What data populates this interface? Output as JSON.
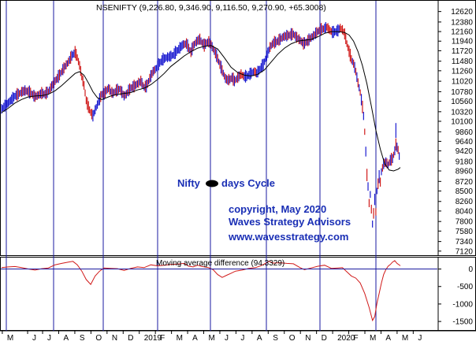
{
  "chart_data": [
    {
      "type": "line",
      "title": "NSENIFTY (9,226.80, 9,346.90, 9,116.50, 9,270.90, +65.3008)",
      "price_series": "NSENIFTY",
      "ohlc_last": {
        "open": 9226.8,
        "high": 9346.9,
        "low": 9116.5,
        "close": 9270.9,
        "change": 65.3008
      },
      "y_ticks": [
        12620,
        12380,
        12160,
        11940,
        11720,
        11480,
        11260,
        11020,
        10780,
        10560,
        10320,
        10100,
        9860,
        9640,
        9420,
        9180,
        8960,
        8720,
        8500,
        8260,
        8040,
        7800,
        7580,
        7340,
        7120
      ],
      "ylim": [
        7080,
        12740
      ],
      "x_month_labels": [
        "M",
        "J",
        "J",
        "A",
        "S",
        "O",
        "N",
        "D",
        "2019",
        "F",
        "M",
        "A",
        "M",
        "J",
        "J",
        "A",
        "S",
        "O",
        "N",
        "D",
        "2020",
        "F",
        "M",
        "A",
        "M",
        "J"
      ],
      "x_month_positions": [
        2,
        24,
        37,
        51,
        65,
        79,
        93,
        107,
        121,
        135,
        149,
        163,
        177,
        191,
        205,
        219,
        233,
        247,
        261,
        275,
        289,
        303,
        317,
        331,
        345,
        359
      ],
      "cycle_line_x": [
        8,
        68,
        131,
        200,
        267,
        338,
        406,
        477
      ],
      "price_close": [
        [
          0,
          10380
        ],
        [
          3,
          10450
        ],
        [
          6,
          10520
        ],
        [
          9,
          10600
        ],
        [
          12,
          10680
        ],
        [
          15,
          10720
        ],
        [
          18,
          10770
        ],
        [
          21,
          10800
        ],
        [
          24,
          10780
        ],
        [
          27,
          10730
        ],
        [
          30,
          10660
        ],
        [
          33,
          10700
        ],
        [
          36,
          10740
        ],
        [
          39,
          10720
        ],
        [
          42,
          10780
        ],
        [
          45,
          10900
        ],
        [
          48,
          11020
        ],
        [
          51,
          11120
        ],
        [
          54,
          11240
        ],
        [
          57,
          11360
        ],
        [
          60,
          11460
        ],
        [
          63,
          11600
        ],
        [
          66,
          11680
        ],
        [
          68,
          11560
        ],
        [
          70,
          11380
        ],
        [
          72,
          11120
        ],
        [
          74,
          10920
        ],
        [
          76,
          10580
        ],
        [
          78,
          10420
        ],
        [
          80,
          10300
        ],
        [
          82,
          10220
        ],
        [
          84,
          10360
        ],
        [
          86,
          10480
        ],
        [
          88,
          10600
        ],
        [
          90,
          10720
        ],
        [
          92,
          10720
        ],
        [
          94,
          10800
        ],
        [
          96,
          10860
        ],
        [
          98,
          10780
        ],
        [
          100,
          10740
        ],
        [
          103,
          10800
        ],
        [
          106,
          10840
        ],
        [
          108,
          10760
        ],
        [
          110,
          10680
        ],
        [
          112,
          10720
        ],
        [
          114,
          10800
        ],
        [
          116,
          10860
        ],
        [
          119,
          10900
        ],
        [
          122,
          10960
        ],
        [
          125,
          11020
        ],
        [
          128,
          10880
        ],
        [
          130,
          10900
        ],
        [
          133,
          11080
        ],
        [
          136,
          11240
        ],
        [
          139,
          11320
        ],
        [
          142,
          11440
        ],
        [
          145,
          11520
        ],
        [
          148,
          11560
        ],
        [
          151,
          11580
        ],
        [
          154,
          11620
        ],
        [
          157,
          11700
        ],
        [
          160,
          11780
        ],
        [
          163,
          11860
        ],
        [
          166,
          11880
        ],
        [
          168,
          11780
        ],
        [
          170,
          11680
        ],
        [
          172,
          11820
        ],
        [
          174,
          11900
        ],
        [
          176,
          11950
        ],
        [
          178,
          11980
        ],
        [
          180,
          11900
        ],
        [
          182,
          11840
        ],
        [
          184,
          11900
        ],
        [
          186,
          11920
        ],
        [
          188,
          11860
        ],
        [
          190,
          11760
        ],
        [
          193,
          11600
        ],
        [
          196,
          11400
        ],
        [
          199,
          11200
        ],
        [
          201,
          11080
        ],
        [
          203,
          11040
        ],
        [
          205,
          11060
        ],
        [
          207,
          11100
        ],
        [
          209,
          11020
        ],
        [
          212,
          11100
        ],
        [
          215,
          11180
        ],
        [
          218,
          11120
        ],
        [
          221,
          11140
        ],
        [
          224,
          11200
        ],
        [
          227,
          11240
        ],
        [
          229,
          11200
        ],
        [
          232,
          11300
        ],
        [
          235,
          11400
        ],
        [
          238,
          11600
        ],
        [
          241,
          11800
        ],
        [
          244,
          11900
        ],
        [
          247,
          11920
        ],
        [
          250,
          11980
        ],
        [
          253,
          12040
        ],
        [
          256,
          12060
        ],
        [
          259,
          12080
        ],
        [
          262,
          12100
        ],
        [
          265,
          12020
        ],
        [
          268,
          11960
        ],
        [
          271,
          11880
        ],
        [
          274,
          11920
        ],
        [
          277,
          12000
        ],
        [
          280,
          12060
        ],
        [
          283,
          12140
        ],
        [
          286,
          12200
        ],
        [
          289,
          12220
        ],
        [
          292,
          12260
        ],
        [
          295,
          12180
        ],
        [
          297,
          12140
        ],
        [
          299,
          12150
        ],
        [
          302,
          12180
        ],
        [
          304,
          12240
        ],
        [
          306,
          12200
        ],
        [
          308,
          12100
        ],
        [
          310,
          11880
        ],
        [
          312,
          11700
        ],
        [
          314,
          11520
        ],
        [
          316,
          11420
        ],
        [
          318,
          11240
        ],
        [
          320,
          10980
        ],
        [
          322,
          10760
        ],
        [
          324,
          10420
        ],
        [
          325,
          10220
        ],
        [
          326,
          9860
        ],
        [
          327,
          9400
        ],
        [
          328,
          8860
        ],
        [
          329,
          8600
        ],
        [
          330,
          8220
        ],
        [
          331,
          8420
        ],
        [
          332,
          8080
        ],
        [
          333,
          7740
        ],
        [
          334,
          7980
        ],
        [
          335,
          8300
        ],
        [
          336,
          8020
        ],
        [
          337,
          8500
        ],
        [
          338,
          8660
        ],
        [
          339,
          8820
        ],
        [
          340,
          8700
        ],
        [
          341,
          8940
        ],
        [
          343,
          9120
        ],
        [
          345,
          9160
        ],
        [
          347,
          9100
        ],
        [
          349,
          9200
        ],
        [
          351,
          9240
        ],
        [
          353,
          9420
        ],
        [
          354,
          9560
        ],
        [
          356,
          9440
        ],
        [
          357,
          9300
        ],
        [
          358,
          9270
        ]
      ],
      "ma_line": [
        [
          0,
          10300
        ],
        [
          6,
          10400
        ],
        [
          12,
          10520
        ],
        [
          18,
          10600
        ],
        [
          24,
          10660
        ],
        [
          30,
          10680
        ],
        [
          36,
          10690
        ],
        [
          42,
          10720
        ],
        [
          48,
          10800
        ],
        [
          54,
          10920
        ],
        [
          60,
          11060
        ],
        [
          66,
          11200
        ],
        [
          70,
          11240
        ],
        [
          74,
          11160
        ],
        [
          78,
          10980
        ],
        [
          82,
          10780
        ],
        [
          86,
          10640
        ],
        [
          90,
          10600
        ],
        [
          94,
          10640
        ],
        [
          98,
          10680
        ],
        [
          104,
          10720
        ],
        [
          110,
          10740
        ],
        [
          116,
          10760
        ],
        [
          122,
          10820
        ],
        [
          128,
          10860
        ],
        [
          134,
          10940
        ],
        [
          140,
          11060
        ],
        [
          146,
          11200
        ],
        [
          152,
          11360
        ],
        [
          158,
          11480
        ],
        [
          164,
          11600
        ],
        [
          170,
          11700
        ],
        [
          176,
          11780
        ],
        [
          182,
          11820
        ],
        [
          188,
          11840
        ],
        [
          194,
          11760
        ],
        [
          200,
          11560
        ],
        [
          206,
          11340
        ],
        [
          212,
          11220
        ],
        [
          218,
          11160
        ],
        [
          224,
          11140
        ],
        [
          230,
          11180
        ],
        [
          236,
          11280
        ],
        [
          242,
          11460
        ],
        [
          248,
          11640
        ],
        [
          254,
          11780
        ],
        [
          260,
          11880
        ],
        [
          266,
          11940
        ],
        [
          272,
          11960
        ],
        [
          278,
          11980
        ],
        [
          284,
          12040
        ],
        [
          290,
          12120
        ],
        [
          296,
          12160
        ],
        [
          302,
          12160
        ],
        [
          308,
          12140
        ],
        [
          312,
          12080
        ],
        [
          316,
          11940
        ],
        [
          320,
          11700
        ],
        [
          324,
          11380
        ],
        [
          328,
          10960
        ],
        [
          332,
          10440
        ],
        [
          336,
          9900
        ],
        [
          340,
          9460
        ],
        [
          344,
          9120
        ],
        [
          348,
          8980
        ],
        [
          352,
          8960
        ],
        [
          356,
          9000
        ],
        [
          358,
          9040
        ]
      ],
      "annotations": {
        "cycle_label_left": "Nifty",
        "cycle_label_right": "days Cycle",
        "copyright": "copyright, May 2020",
        "firm": "Waves Strategy Advisors",
        "website": "www.wavesstrategy.com"
      }
    },
    {
      "type": "line",
      "title": "Moving average difference (94.3329)",
      "indicator_value": 94.3329,
      "y_ticks": [
        0,
        -500,
        -1000,
        -1500
      ],
      "ylim": [
        -1700,
        260
      ],
      "values": [
        [
          0,
          40
        ],
        [
          6,
          60
        ],
        [
          12,
          70
        ],
        [
          18,
          40
        ],
        [
          24,
          0
        ],
        [
          30,
          -30
        ],
        [
          36,
          10
        ],
        [
          42,
          30
        ],
        [
          48,
          120
        ],
        [
          54,
          160
        ],
        [
          60,
          200
        ],
        [
          64,
          220
        ],
        [
          68,
          120
        ],
        [
          72,
          -60
        ],
        [
          76,
          -300
        ],
        [
          80,
          -440
        ],
        [
          84,
          -200
        ],
        [
          88,
          -60
        ],
        [
          92,
          30
        ],
        [
          98,
          20
        ],
        [
          104,
          10
        ],
        [
          110,
          -40
        ],
        [
          116,
          20
        ],
        [
          122,
          60
        ],
        [
          128,
          40
        ],
        [
          134,
          120
        ],
        [
          140,
          90
        ],
        [
          146,
          110
        ],
        [
          152,
          130
        ],
        [
          158,
          140
        ],
        [
          164,
          160
        ],
        [
          168,
          80
        ],
        [
          172,
          60
        ],
        [
          176,
          110
        ],
        [
          180,
          70
        ],
        [
          186,
          40
        ],
        [
          190,
          -20
        ],
        [
          194,
          -160
        ],
        [
          198,
          -240
        ],
        [
          202,
          -180
        ],
        [
          206,
          -120
        ],
        [
          210,
          -60
        ],
        [
          216,
          -30
        ],
        [
          222,
          20
        ],
        [
          228,
          40
        ],
        [
          234,
          110
        ],
        [
          240,
          220
        ],
        [
          244,
          170
        ],
        [
          250,
          180
        ],
        [
          256,
          160
        ],
        [
          262,
          150
        ],
        [
          268,
          40
        ],
        [
          272,
          -20
        ],
        [
          278,
          30
        ],
        [
          284,
          80
        ],
        [
          290,
          110
        ],
        [
          296,
          20
        ],
        [
          302,
          30
        ],
        [
          306,
          40
        ],
        [
          310,
          -80
        ],
        [
          314,
          -200
        ],
        [
          318,
          -260
        ],
        [
          322,
          -400
        ],
        [
          326,
          -700
        ],
        [
          330,
          -1100
        ],
        [
          333,
          -1470
        ],
        [
          335,
          -1360
        ],
        [
          337,
          -980
        ],
        [
          339,
          -700
        ],
        [
          341,
          -400
        ],
        [
          343,
          -160
        ],
        [
          345,
          -20
        ],
        [
          347,
          80
        ],
        [
          349,
          130
        ],
        [
          351,
          200
        ],
        [
          353,
          240
        ],
        [
          355,
          160
        ],
        [
          358,
          94
        ]
      ]
    }
  ]
}
